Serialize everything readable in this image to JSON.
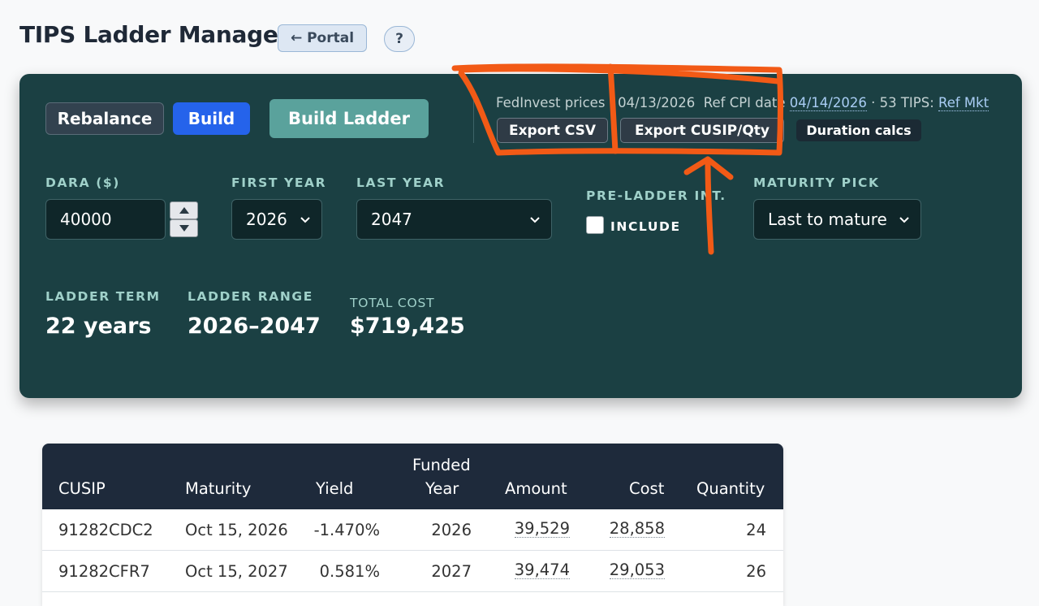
{
  "header": {
    "title": "TIPS Ladder Manager",
    "portal_label": "← Portal",
    "help_label": "?"
  },
  "toolbar": {
    "rebalance_label": "Rebalance",
    "build_label": "Build",
    "build_ladder_label": "Build Ladder",
    "info": {
      "prefix": "FedInvest prices · ",
      "price_date": "04/13/2026",
      "refcpi_prefix": "  Ref CPI date ",
      "refcpi_date": "04/14/2026",
      "count_text": " · 53 TIPS: ",
      "ref_mkt_label": "Ref Mkt"
    },
    "export_csv_label": "Export CSV",
    "export_cusip_label": "Export CUSIP/Qty",
    "duration_label": "Duration calcs"
  },
  "fields": {
    "dara": {
      "label": "DARA ($)",
      "value": "40000"
    },
    "first_year": {
      "label": "FIRST YEAR",
      "value": "2026"
    },
    "last_year": {
      "label": "LAST YEAR",
      "value": "2047"
    },
    "pre_ladder": {
      "label": "PRE-LADDER INT.",
      "checkbox_label": "INCLUDE",
      "checked": false
    },
    "maturity_pick": {
      "label": "MATURITY PICK",
      "value": "Last to mature"
    }
  },
  "stats": {
    "term": {
      "label": "LADDER TERM",
      "value": "22 years"
    },
    "range": {
      "label": "LADDER RANGE",
      "value": "2026–2047"
    },
    "cost": {
      "label": "TOTAL COST",
      "value": "$719,425"
    }
  },
  "table": {
    "headers": {
      "cusip": "CUSIP",
      "maturity": "Maturity",
      "yield": "Yield",
      "funded_top": "Funded",
      "funded_bottom": "Year",
      "amount": "Amount",
      "cost": "Cost",
      "quantity": "Quantity"
    },
    "rows": [
      {
        "cusip": "91282CDC2",
        "maturity": "Oct 15, 2026",
        "yield": "-1.470%",
        "funded_year": "2026",
        "amount": "39,529",
        "cost": "28,858",
        "quantity": "24"
      },
      {
        "cusip": "91282CFR7",
        "maturity": "Oct 15, 2027",
        "yield": "0.581%",
        "funded_year": "2027",
        "amount": "39,474",
        "cost": "29,053",
        "quantity": "26"
      }
    ]
  },
  "colors": {
    "panel_bg": "#1b4043",
    "accent_blue": "#2563eb",
    "accent_teal": "#5aa29c",
    "annotation": "#f25a16"
  }
}
